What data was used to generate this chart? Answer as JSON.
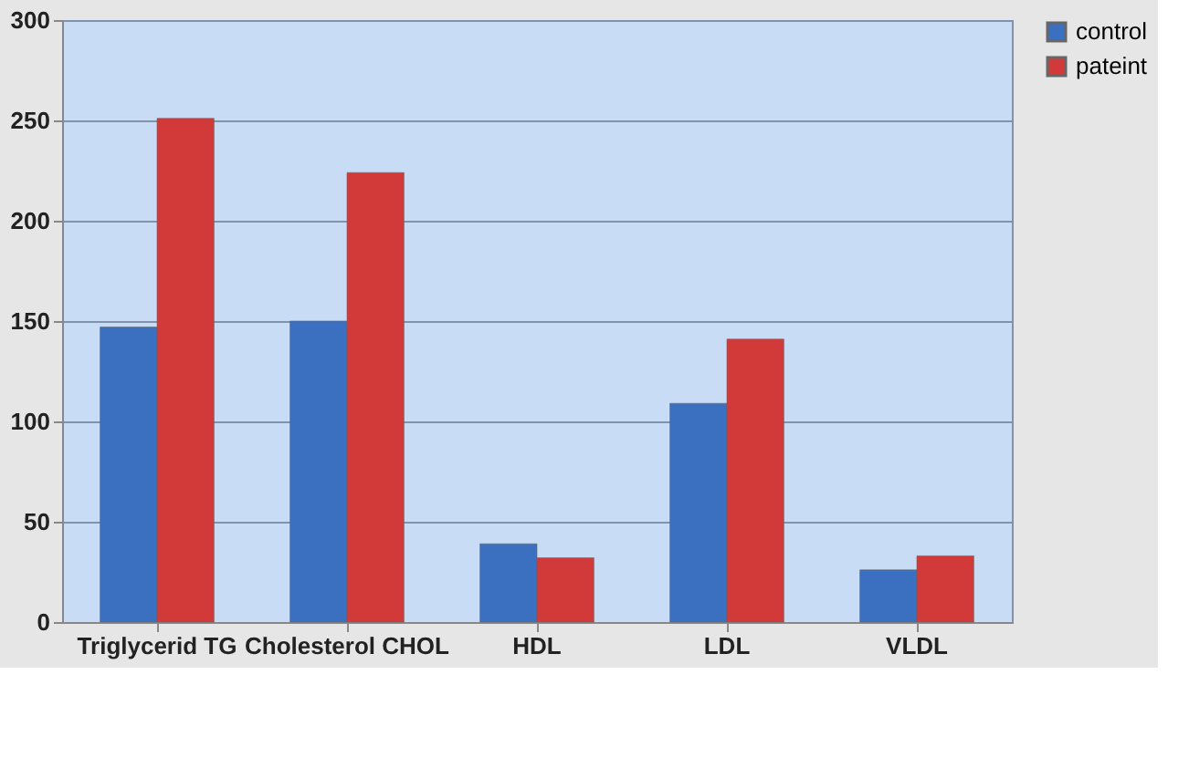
{
  "chart_data": {
    "type": "bar",
    "categories": [
      "Triglycerid TG",
      "Cholesterol CHOL",
      "HDL",
      "LDL",
      "VLDL"
    ],
    "series": [
      {
        "name": "control",
        "color": "#3b6fc0",
        "values": [
          147,
          150,
          39,
          109,
          26
        ]
      },
      {
        "name": "pateint",
        "color": "#d23a3a",
        "values": [
          251,
          224,
          32,
          141,
          33
        ]
      }
    ],
    "ylim": [
      0,
      300
    ],
    "yticks": [
      0,
      50,
      100,
      150,
      200,
      250,
      300
    ],
    "grid": "y",
    "legend": "right"
  }
}
